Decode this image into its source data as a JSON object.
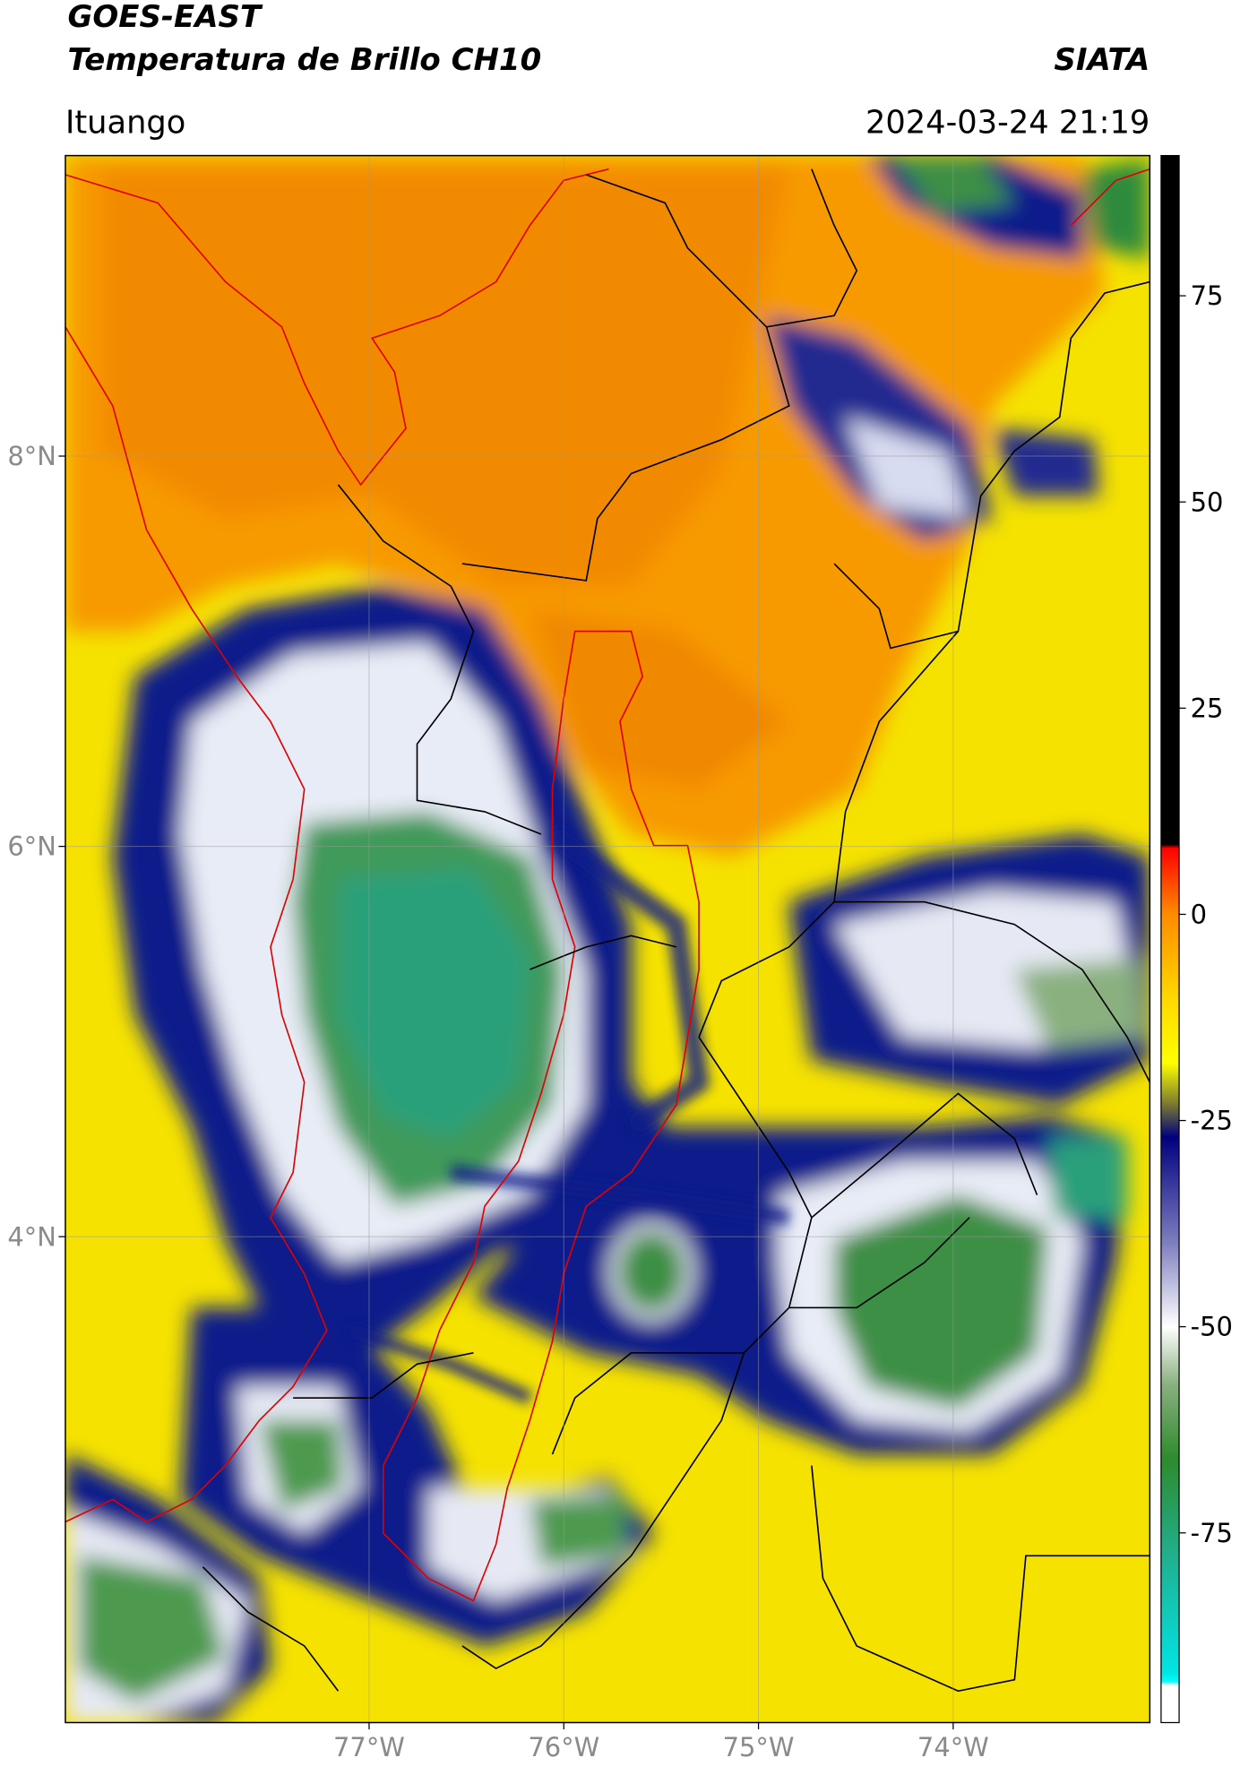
{
  "header": {
    "title": "GOES-EAST",
    "subtitle": "Temperatura de Brillo CH10",
    "brand": "SIATA",
    "location": "Ituango",
    "datetime": "2024-03-24 21:19"
  },
  "map": {
    "xlim": [
      -78.56,
      -72.99
    ],
    "ylim": [
      1.51,
      9.54
    ],
    "xticks": [
      {
        "value": -77,
        "label": "77°W"
      },
      {
        "value": -76,
        "label": "76°W"
      },
      {
        "value": -75,
        "label": "75°W"
      },
      {
        "value": -74,
        "label": "74°W"
      }
    ],
    "yticks": [
      {
        "value": 8,
        "label": "8°N"
      },
      {
        "value": 6,
        "label": "6°N"
      },
      {
        "value": 4,
        "label": "4°N"
      }
    ],
    "grid": true
  },
  "colorbar": {
    "clim": [
      -98,
      92
    ],
    "ticks": [
      75,
      50,
      25,
      0,
      -25,
      -50,
      -75
    ],
    "stops": [
      {
        "value": 92,
        "color": "#000000"
      },
      {
        "value": 8.5,
        "color": "#000000"
      },
      {
        "value": 8,
        "color": "#ff0000"
      },
      {
        "value": 0,
        "color": "#ff8c00"
      },
      {
        "value": -10,
        "color": "#ffd700"
      },
      {
        "value": -18,
        "color": "#ffff00"
      },
      {
        "value": -23,
        "color": "#7a7a30"
      },
      {
        "value": -27,
        "color": "#000080"
      },
      {
        "value": -40,
        "color": "#8080c0"
      },
      {
        "value": -50,
        "color": "#ffffff"
      },
      {
        "value": -57,
        "color": "#8ab080"
      },
      {
        "value": -66,
        "color": "#2e8b2e"
      },
      {
        "value": -78,
        "color": "#20b090"
      },
      {
        "value": -92,
        "color": "#00e5e5"
      },
      {
        "value": -93,
        "color": "#00ffff"
      },
      {
        "value": -93.5,
        "color": "#ffffff"
      },
      {
        "value": -98,
        "color": "#ffffff"
      }
    ]
  }
}
